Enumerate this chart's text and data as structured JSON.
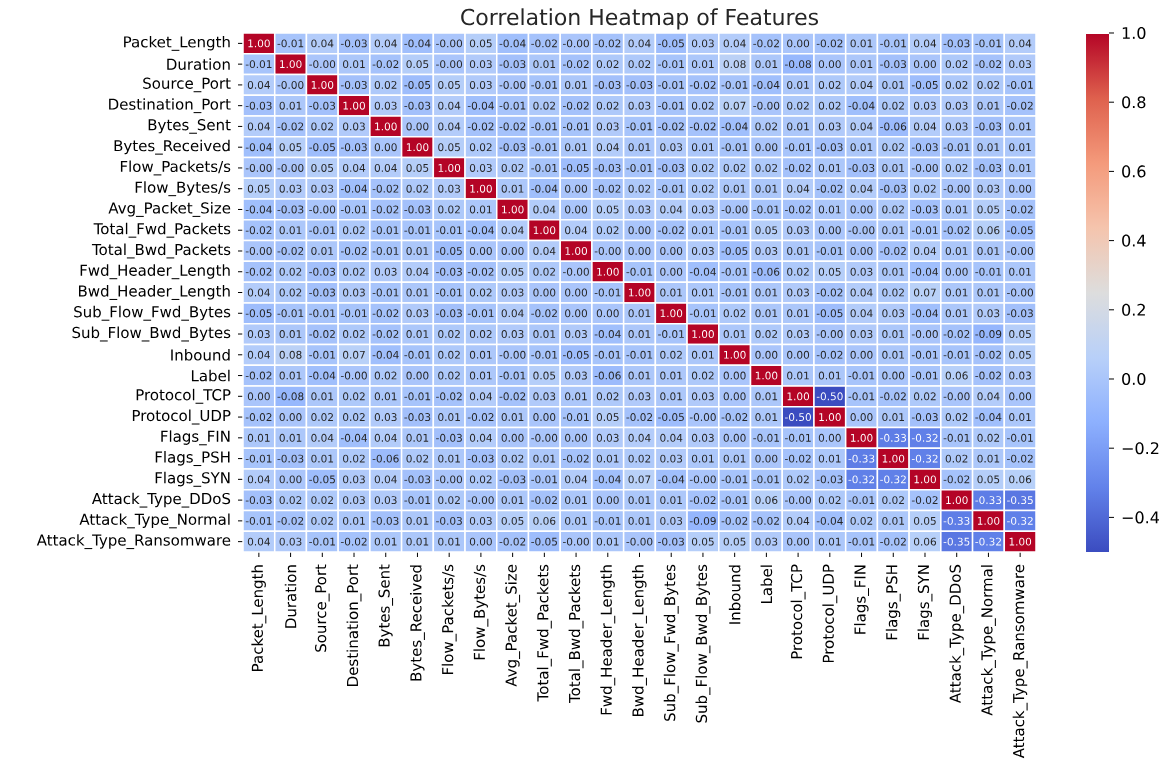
{
  "chart_data": {
    "type": "heatmap",
    "title": "Correlation Heatmap of Features",
    "categories": [
      "Packet_Length",
      "Duration",
      "Source_Port",
      "Destination_Port",
      "Bytes_Sent",
      "Bytes_Received",
      "Flow_Packets/s",
      "Flow_Bytes/s",
      "Avg_Packet_Size",
      "Total_Fwd_Packets",
      "Total_Bwd_Packets",
      "Fwd_Header_Length",
      "Bwd_Header_Length",
      "Sub_Flow_Fwd_Bytes",
      "Sub_Flow_Bwd_Bytes",
      "Inbound",
      "Label",
      "Protocol_TCP",
      "Protocol_UDP",
      "Flags_FIN",
      "Flags_PSH",
      "Flags_SYN",
      "Attack_Type_DDoS",
      "Attack_Type_Normal",
      "Attack_Type_Ransomware"
    ],
    "y_categories": [
      "Packet_Length",
      "Duration",
      "Source_Port",
      "Destination_Port",
      "Bytes_Sent",
      "Bytes_Received",
      "Flow_Packets/s",
      "Flow_Bytes/s",
      "Avg_Packet_Size",
      "Total_Fwd_Packets",
      "Total_Bwd_Packets",
      "Fwd_Header_Length",
      "Bwd_Header_Length",
      "Sub_Flow_Fwd_Bytes",
      "Sub_Flow_Bwd_Bytes",
      "Inbound",
      "Label",
      "Protocol_TCP",
      "Protocol_UDP",
      "Flags_FIN",
      "Flags_PSH",
      "Flags_SYN",
      "Attack_Type_DDoS",
      "Attack_Type_Normal",
      "Attack_Type_Ransomware"
    ],
    "cells": [
      [
        1.0,
        -0.01,
        0.04,
        -0.03,
        0.04,
        -0.04,
        -0.0,
        0.05,
        -0.04,
        -0.02,
        -0.0,
        -0.02,
        0.04,
        -0.05,
        0.03,
        0.04,
        -0.02,
        0.0,
        -0.02,
        0.01,
        -0.01,
        0.04,
        -0.03,
        -0.01,
        0.04
      ],
      [
        -0.01,
        1.0,
        -0.0,
        0.01,
        -0.02,
        0.05,
        -0.0,
        0.03,
        -0.03,
        0.01,
        -0.02,
        0.02,
        0.02,
        -0.01,
        0.01,
        0.08,
        0.01,
        -0.08,
        0.0,
        0.01,
        -0.03,
        0.0,
        0.02,
        -0.02,
        0.03
      ],
      [
        0.04,
        -0.0,
        1.0,
        -0.03,
        0.02,
        -0.05,
        0.05,
        0.03,
        -0.0,
        -0.01,
        0.01,
        -0.03,
        -0.03,
        -0.01,
        -0.02,
        -0.01,
        -0.04,
        0.01,
        0.02,
        0.04,
        0.01,
        -0.05,
        0.02,
        0.02,
        -0.01
      ],
      [
        -0.03,
        0.01,
        -0.03,
        1.0,
        0.03,
        -0.03,
        0.04,
        -0.04,
        -0.01,
        0.02,
        -0.02,
        0.02,
        0.03,
        -0.01,
        0.02,
        0.07,
        -0.0,
        0.02,
        0.02,
        -0.04,
        0.02,
        0.03,
        0.03,
        0.01,
        -0.02
      ],
      [
        0.04,
        -0.02,
        0.02,
        0.03,
        1.0,
        0.0,
        0.04,
        -0.02,
        -0.02,
        -0.01,
        -0.01,
        0.03,
        -0.01,
        -0.02,
        -0.02,
        -0.04,
        0.02,
        0.01,
        0.03,
        0.04,
        -0.06,
        0.04,
        0.03,
        -0.03,
        0.01
      ],
      [
        -0.04,
        0.05,
        -0.05,
        -0.03,
        0.0,
        1.0,
        0.05,
        0.02,
        -0.03,
        -0.01,
        0.01,
        0.04,
        0.01,
        0.03,
        0.01,
        -0.01,
        0.0,
        -0.01,
        -0.03,
        0.01,
        0.02,
        -0.03,
        -0.01,
        0.01,
        0.01
      ],
      [
        -0.0,
        -0.0,
        0.05,
        0.04,
        0.04,
        0.05,
        1.0,
        0.03,
        0.02,
        -0.01,
        -0.05,
        -0.03,
        -0.01,
        -0.03,
        0.02,
        0.02,
        0.02,
        -0.02,
        0.01,
        -0.03,
        0.01,
        -0.0,
        0.02,
        -0.03,
        0.01
      ],
      [
        0.05,
        0.03,
        0.03,
        -0.04,
        -0.02,
        0.02,
        0.03,
        1.0,
        0.01,
        -0.04,
        0.0,
        -0.02,
        0.02,
        -0.01,
        0.02,
        0.01,
        0.01,
        0.04,
        -0.02,
        0.04,
        -0.03,
        0.02,
        -0.0,
        0.03,
        0.0
      ],
      [
        -0.04,
        -0.03,
        -0.0,
        -0.01,
        -0.02,
        -0.03,
        0.02,
        0.01,
        1.0,
        0.04,
        0.0,
        0.05,
        0.03,
        0.04,
        0.03,
        -0.0,
        -0.01,
        -0.02,
        0.01,
        0.0,
        0.02,
        -0.03,
        0.01,
        0.05,
        -0.02
      ],
      [
        -0.02,
        0.01,
        -0.01,
        0.02,
        -0.01,
        -0.01,
        -0.01,
        -0.04,
        0.04,
        1.0,
        0.04,
        0.02,
        0.0,
        -0.02,
        0.01,
        -0.01,
        0.05,
        0.03,
        0.0,
        -0.0,
        0.01,
        -0.01,
        -0.02,
        0.06,
        -0.05
      ],
      [
        -0.0,
        -0.02,
        0.01,
        -0.02,
        -0.01,
        0.01,
        -0.05,
        0.0,
        0.0,
        0.04,
        1.0,
        -0.0,
        0.0,
        0.0,
        0.03,
        -0.05,
        0.03,
        0.01,
        -0.01,
        0.0,
        -0.02,
        0.04,
        0.01,
        0.01,
        -0.0
      ],
      [
        -0.02,
        0.02,
        -0.03,
        0.02,
        0.03,
        0.04,
        -0.03,
        -0.02,
        0.05,
        0.02,
        -0.0,
        1.0,
        -0.01,
        0.0,
        -0.04,
        -0.01,
        -0.06,
        0.02,
        0.05,
        0.03,
        0.01,
        -0.04,
        0.0,
        -0.01,
        0.01
      ],
      [
        0.04,
        0.02,
        -0.03,
        0.03,
        -0.01,
        0.01,
        -0.01,
        0.02,
        0.03,
        0.0,
        0.0,
        -0.01,
        1.0,
        0.01,
        0.01,
        -0.01,
        0.01,
        0.03,
        -0.02,
        0.04,
        0.02,
        0.07,
        0.01,
        0.01,
        -0.0
      ],
      [
        -0.05,
        -0.01,
        -0.01,
        -0.01,
        -0.02,
        0.03,
        -0.03,
        -0.01,
        0.04,
        -0.02,
        0.0,
        0.0,
        0.01,
        1.0,
        -0.01,
        0.02,
        0.01,
        0.01,
        -0.05,
        0.04,
        0.03,
        -0.04,
        0.01,
        0.03,
        -0.03
      ],
      [
        0.03,
        0.01,
        -0.02,
        0.02,
        -0.02,
        0.01,
        0.02,
        0.02,
        0.03,
        0.01,
        0.03,
        -0.04,
        0.01,
        -0.01,
        1.0,
        0.01,
        0.02,
        0.03,
        -0.0,
        0.03,
        0.01,
        -0.0,
        -0.02,
        -0.09,
        0.05
      ],
      [
        0.04,
        0.08,
        -0.01,
        0.07,
        -0.04,
        -0.01,
        0.02,
        0.01,
        -0.0,
        -0.01,
        -0.05,
        -0.01,
        -0.01,
        0.02,
        0.01,
        1.0,
        0.0,
        0.0,
        -0.02,
        0.0,
        0.01,
        -0.01,
        -0.01,
        -0.02,
        0.05
      ],
      [
        -0.02,
        0.01,
        -0.04,
        -0.0,
        0.02,
        0.0,
        0.02,
        0.01,
        -0.01,
        0.05,
        0.03,
        -0.06,
        0.01,
        0.01,
        0.02,
        0.0,
        1.0,
        0.01,
        0.01,
        -0.01,
        0.0,
        -0.01,
        0.06,
        -0.02,
        0.03
      ],
      [
        0.0,
        -0.08,
        0.01,
        0.02,
        0.01,
        -0.01,
        -0.02,
        0.04,
        -0.02,
        0.03,
        0.01,
        0.02,
        0.03,
        0.01,
        0.03,
        0.0,
        0.01,
        1.0,
        -0.5,
        -0.01,
        -0.02,
        0.02,
        -0.0,
        0.04,
        0.0
      ],
      [
        -0.02,
        0.0,
        0.02,
        0.02,
        0.03,
        -0.03,
        0.01,
        -0.02,
        0.01,
        0.0,
        -0.01,
        0.05,
        -0.02,
        -0.05,
        -0.0,
        -0.02,
        0.01,
        -0.5,
        1.0,
        0.0,
        0.01,
        -0.03,
        0.02,
        -0.04,
        0.01
      ],
      [
        0.01,
        0.01,
        0.04,
        -0.04,
        0.04,
        0.01,
        -0.03,
        0.04,
        0.0,
        -0.0,
        0.0,
        0.03,
        0.04,
        0.04,
        0.03,
        0.0,
        -0.01,
        -0.01,
        0.0,
        1.0,
        -0.33,
        -0.32,
        -0.01,
        0.02,
        -0.01
      ],
      [
        -0.01,
        -0.03,
        0.01,
        0.02,
        -0.06,
        0.02,
        0.01,
        -0.03,
        0.02,
        0.01,
        -0.02,
        0.01,
        0.02,
        0.03,
        0.01,
        0.01,
        0.0,
        -0.02,
        0.01,
        -0.33,
        1.0,
        -0.32,
        0.02,
        0.01,
        -0.02
      ],
      [
        0.04,
        0.0,
        -0.05,
        0.03,
        0.04,
        -0.03,
        -0.0,
        0.02,
        -0.03,
        -0.01,
        0.04,
        -0.04,
        0.07,
        -0.04,
        -0.0,
        -0.01,
        -0.01,
        0.02,
        -0.03,
        -0.32,
        -0.32,
        1.0,
        -0.02,
        0.05,
        0.06
      ],
      [
        -0.03,
        0.02,
        0.02,
        0.03,
        0.03,
        -0.01,
        0.02,
        -0.0,
        0.01,
        -0.02,
        0.01,
        0.0,
        0.01,
        0.01,
        -0.02,
        -0.01,
        0.06,
        -0.0,
        0.02,
        -0.01,
        0.02,
        -0.02,
        1.0,
        -0.33,
        -0.35
      ],
      [
        -0.01,
        -0.02,
        0.02,
        0.01,
        -0.03,
        0.01,
        -0.03,
        0.03,
        0.05,
        0.06,
        0.01,
        -0.01,
        0.01,
        0.03,
        -0.09,
        -0.02,
        -0.02,
        0.04,
        -0.04,
        0.02,
        0.01,
        0.05,
        -0.33,
        1.0,
        -0.32
      ],
      [
        0.04,
        0.03,
        -0.01,
        -0.02,
        0.01,
        0.01,
        0.01,
        0.0,
        -0.02,
        -0.05,
        -0.0,
        0.01,
        -0.0,
        -0.03,
        0.05,
        0.05,
        0.03,
        0.0,
        0.01,
        -0.01,
        -0.02,
        0.06,
        -0.35,
        -0.32,
        1.0
      ]
    ],
    "cell_labels": [
      [
        "1.00",
        "-0.01",
        "0.04",
        "-0.03",
        "0.04",
        "-0.04",
        "-0.00",
        "0.05",
        "-0.04",
        "-0.02",
        "-0.00",
        "-0.02",
        "0.04",
        "-0.05",
        "0.03",
        "0.04",
        "-0.02",
        "0.00",
        "-0.02",
        "0.01",
        "-0.01",
        "0.04",
        "-0.03",
        "-0.01",
        "0.04"
      ],
      [
        "-0.01",
        "1.00",
        "-0.00",
        "0.01",
        "-0.02",
        "0.05",
        "-0.00",
        "0.03",
        "-0.03",
        "0.01",
        "-0.02",
        "0.02",
        "0.02",
        "-0.01",
        "0.01",
        "0.08",
        "0.01",
        "-0.08",
        "0.00",
        "0.01",
        "-0.03",
        "0.00",
        "0.02",
        "-0.02",
        "0.03"
      ],
      [
        "0.04",
        "-0.00",
        "1.00",
        "-0.03",
        "0.02",
        "-0.05",
        "0.05",
        "0.03",
        "-0.00",
        "-0.01",
        "0.01",
        "-0.03",
        "-0.03",
        "-0.01",
        "-0.02",
        "-0.01",
        "-0.04",
        "0.01",
        "0.02",
        "0.04",
        "0.01",
        "-0.05",
        "0.02",
        "0.02",
        "-0.01"
      ],
      [
        "-0.03",
        "0.01",
        "-0.03",
        "1.00",
        "0.03",
        "-0.03",
        "0.04",
        "-0.04",
        "-0.01",
        "0.02",
        "-0.02",
        "0.02",
        "0.03",
        "-0.01",
        "0.02",
        "0.07",
        "-0.00",
        "0.02",
        "0.02",
        "-0.04",
        "0.02",
        "0.03",
        "0.03",
        "0.01",
        "-0.02"
      ],
      [
        "0.04",
        "-0.02",
        "0.02",
        "0.03",
        "1.00",
        "0.00",
        "0.04",
        "-0.02",
        "-0.02",
        "-0.01",
        "-0.01",
        "0.03",
        "-0.01",
        "-0.02",
        "-0.02",
        "-0.04",
        "0.02",
        "0.01",
        "0.03",
        "0.04",
        "-0.06",
        "0.04",
        "0.03",
        "-0.03",
        "0.01"
      ],
      [
        "-0.04",
        "0.05",
        "-0.05",
        "-0.03",
        "0.00",
        "1.00",
        "0.05",
        "0.02",
        "-0.03",
        "-0.01",
        "0.01",
        "0.04",
        "0.01",
        "0.03",
        "0.01",
        "-0.01",
        "0.00",
        "-0.01",
        "-0.03",
        "0.01",
        "0.02",
        "-0.03",
        "-0.01",
        "0.01",
        "0.01"
      ],
      [
        "-0.00",
        "-0.00",
        "0.05",
        "0.04",
        "0.04",
        "0.05",
        "1.00",
        "0.03",
        "0.02",
        "-0.01",
        "-0.05",
        "-0.03",
        "-0.01",
        "-0.03",
        "0.02",
        "0.02",
        "0.02",
        "-0.02",
        "0.01",
        "-0.03",
        "0.01",
        "-0.00",
        "0.02",
        "-0.03",
        "0.01"
      ],
      [
        "0.05",
        "0.03",
        "0.03",
        "-0.04",
        "-0.02",
        "0.02",
        "0.03",
        "1.00",
        "0.01",
        "-0.04",
        "0.00",
        "-0.02",
        "0.02",
        "-0.01",
        "0.02",
        "0.01",
        "0.01",
        "0.04",
        "-0.02",
        "0.04",
        "-0.03",
        "0.02",
        "-0.00",
        "0.03",
        "0.00"
      ],
      [
        "-0.04",
        "-0.03",
        "-0.00",
        "-0.01",
        "-0.02",
        "-0.03",
        "0.02",
        "0.01",
        "1.00",
        "0.04",
        "0.00",
        "0.05",
        "0.03",
        "0.04",
        "0.03",
        "-0.00",
        "-0.01",
        "-0.02",
        "0.01",
        "0.00",
        "0.02",
        "-0.03",
        "0.01",
        "0.05",
        "-0.02"
      ],
      [
        "-0.02",
        "0.01",
        "-0.01",
        "0.02",
        "-0.01",
        "-0.01",
        "-0.01",
        "-0.04",
        "0.04",
        "1.00",
        "0.04",
        "0.02",
        "0.00",
        "-0.02",
        "0.01",
        "-0.01",
        "0.05",
        "0.03",
        "0.00",
        "-0.00",
        "0.01",
        "-0.01",
        "-0.02",
        "0.06",
        "-0.05"
      ],
      [
        "-0.00",
        "-0.02",
        "0.01",
        "-0.02",
        "-0.01",
        "0.01",
        "-0.05",
        "0.00",
        "0.00",
        "0.04",
        "1.00",
        "-0.00",
        "0.00",
        "0.00",
        "0.03",
        "-0.05",
        "0.03",
        "0.01",
        "-0.01",
        "0.00",
        "-0.02",
        "0.04",
        "0.01",
        "0.01",
        "-0.00"
      ],
      [
        "-0.02",
        "0.02",
        "-0.03",
        "0.02",
        "0.03",
        "0.04",
        "-0.03",
        "-0.02",
        "0.05",
        "0.02",
        "-0.00",
        "1.00",
        "-0.01",
        "0.00",
        "-0.04",
        "-0.01",
        "-0.06",
        "0.02",
        "0.05",
        "0.03",
        "0.01",
        "-0.04",
        "0.00",
        "-0.01",
        "0.01"
      ],
      [
        "0.04",
        "0.02",
        "-0.03",
        "0.03",
        "-0.01",
        "0.01",
        "-0.01",
        "0.02",
        "0.03",
        "0.00",
        "0.00",
        "-0.01",
        "1.00",
        "0.01",
        "0.01",
        "-0.01",
        "0.01",
        "0.03",
        "-0.02",
        "0.04",
        "0.02",
        "0.07",
        "0.01",
        "0.01",
        "-0.00"
      ],
      [
        "-0.05",
        "-0.01",
        "-0.01",
        "-0.01",
        "-0.02",
        "0.03",
        "-0.03",
        "-0.01",
        "0.04",
        "-0.02",
        "0.00",
        "0.00",
        "0.01",
        "1.00",
        "-0.01",
        "0.02",
        "0.01",
        "0.01",
        "-0.05",
        "0.04",
        "0.03",
        "-0.04",
        "0.01",
        "0.03",
        "-0.03"
      ],
      [
        "0.03",
        "0.01",
        "-0.02",
        "0.02",
        "-0.02",
        "0.01",
        "0.02",
        "0.02",
        "0.03",
        "0.01",
        "0.03",
        "-0.04",
        "0.01",
        "-0.01",
        "1.00",
        "0.01",
        "0.02",
        "0.03",
        "-0.00",
        "0.03",
        "0.01",
        "-0.00",
        "-0.02",
        "-0.09",
        "0.05"
      ],
      [
        "0.04",
        "0.08",
        "-0.01",
        "0.07",
        "-0.04",
        "-0.01",
        "0.02",
        "0.01",
        "-0.00",
        "-0.01",
        "-0.05",
        "-0.01",
        "-0.01",
        "0.02",
        "0.01",
        "1.00",
        "0.00",
        "0.00",
        "-0.02",
        "0.00",
        "0.01",
        "-0.01",
        "-0.01",
        "-0.02",
        "0.05"
      ],
      [
        "-0.02",
        "0.01",
        "-0.04",
        "-0.00",
        "0.02",
        "0.00",
        "0.02",
        "0.01",
        "-0.01",
        "0.05",
        "0.03",
        "-0.06",
        "0.01",
        "0.01",
        "0.02",
        "0.00",
        "1.00",
        "0.01",
        "0.01",
        "-0.01",
        "0.00",
        "-0.01",
        "0.06",
        "-0.02",
        "0.03"
      ],
      [
        "0.00",
        "-0.08",
        "0.01",
        "0.02",
        "0.01",
        "-0.01",
        "-0.02",
        "0.04",
        "-0.02",
        "0.03",
        "0.01",
        "0.02",
        "0.03",
        "0.01",
        "0.03",
        "0.00",
        "0.01",
        "1.00",
        "-0.50",
        "-0.01",
        "-0.02",
        "0.02",
        "-0.00",
        "0.04",
        "0.00"
      ],
      [
        "-0.02",
        "0.00",
        "0.02",
        "0.02",
        "0.03",
        "-0.03",
        "0.01",
        "-0.02",
        "0.01",
        "0.00",
        "-0.01",
        "0.05",
        "-0.02",
        "-0.05",
        "-0.00",
        "-0.02",
        "0.01",
        "-0.50",
        "1.00",
        "0.00",
        "0.01",
        "-0.03",
        "0.02",
        "-0.04",
        "0.01"
      ],
      [
        "0.01",
        "0.01",
        "0.04",
        "-0.04",
        "0.04",
        "0.01",
        "-0.03",
        "0.04",
        "0.00",
        "-0.00",
        "0.00",
        "0.03",
        "0.04",
        "0.04",
        "0.03",
        "0.00",
        "-0.01",
        "-0.01",
        "0.00",
        "1.00",
        "-0.33",
        "-0.32",
        "-0.01",
        "0.02",
        "-0.01"
      ],
      [
        "-0.01",
        "-0.03",
        "0.01",
        "0.02",
        "-0.06",
        "0.02",
        "0.01",
        "-0.03",
        "0.02",
        "0.01",
        "-0.02",
        "0.01",
        "0.02",
        "0.03",
        "0.01",
        "0.01",
        "0.00",
        "-0.02",
        "0.01",
        "-0.33",
        "1.00",
        "-0.32",
        "0.02",
        "0.01",
        "-0.02"
      ],
      [
        "0.04",
        "0.00",
        "-0.05",
        "0.03",
        "0.04",
        "-0.03",
        "-0.00",
        "0.02",
        "-0.03",
        "-0.01",
        "0.04",
        "-0.04",
        "0.07",
        "-0.04",
        "-0.00",
        "-0.01",
        "-0.01",
        "0.02",
        "-0.03",
        "-0.32",
        "-0.32",
        "1.00",
        "-0.02",
        "0.05",
        "0.06"
      ],
      [
        "-0.03",
        "0.02",
        "0.02",
        "0.03",
        "0.03",
        "-0.01",
        "0.02",
        "-0.00",
        "0.01",
        "-0.02",
        "0.01",
        "0.00",
        "0.01",
        "0.01",
        "-0.02",
        "-0.01",
        "0.06",
        "-0.00",
        "0.02",
        "-0.01",
        "0.02",
        "-0.02",
        "1.00",
        "-0.33",
        "-0.35"
      ],
      [
        "-0.01",
        "-0.02",
        "0.02",
        "0.01",
        "-0.03",
        "0.01",
        "-0.03",
        "0.03",
        "0.05",
        "0.06",
        "0.01",
        "-0.01",
        "0.01",
        "0.03",
        "-0.09",
        "-0.02",
        "-0.02",
        "0.04",
        "-0.04",
        "0.02",
        "0.01",
        "0.05",
        "-0.33",
        "1.00",
        "-0.32"
      ],
      [
        "0.04",
        "0.03",
        "-0.01",
        "-0.02",
        "0.01",
        "0.01",
        "0.01",
        "0.00",
        "-0.02",
        "-0.05",
        "-0.00",
        "0.01",
        "-0.00",
        "-0.03",
        "0.05",
        "0.05",
        "0.03",
        "0.00",
        "0.01",
        "-0.01",
        "-0.02",
        "0.06",
        "-0.35",
        "-0.32",
        "1.00"
      ]
    ],
    "clim": [
      -0.5,
      1.0
    ],
    "cticks": [
      {
        "value": -0.4,
        "label": "−0.4"
      },
      {
        "value": -0.2,
        "label": "−0.2"
      },
      {
        "value": 0.0,
        "label": "0.0"
      },
      0.2,
      0.4,
      0.6,
      0.8,
      {
        "value": 1.0,
        "label": "1.0"
      }
    ]
  }
}
